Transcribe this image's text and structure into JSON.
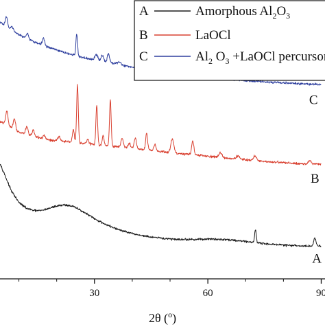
{
  "chart_data": {
    "type": "line",
    "x_range": [
      5,
      91
    ],
    "x_ticks": [
      "30",
      "60",
      "90"
    ],
    "x_tick_values": [
      30,
      60,
      90
    ],
    "xlabel": {
      "main": "2θ (",
      "sup": "o",
      "end": ")"
    },
    "legend": [
      {
        "letter": "A",
        "text": "Amorphous Al",
        "sub1": "2",
        "mid": "O",
        "sub2": "3",
        "tail": ""
      },
      {
        "letter": "B",
        "text": "LaOCl",
        "sub1": "",
        "mid": "",
        "sub2": "",
        "tail": ""
      },
      {
        "letter": "C",
        "text": "Al",
        "sub1": "2",
        "mid": " O",
        "sub2": "3",
        "tail": " +LaOCl percursor"
      }
    ],
    "series": [
      {
        "label": "A",
        "color": "#1a1a1a",
        "noise": 0.045,
        "background": [
          [
            5,
            5.0
          ],
          [
            6,
            4.6
          ],
          [
            8,
            3.8
          ],
          [
            10,
            3.3
          ],
          [
            12,
            3.05
          ],
          [
            14,
            2.95
          ],
          [
            16,
            2.95
          ],
          [
            18,
            3.05
          ],
          [
            20,
            3.15
          ],
          [
            22,
            3.2
          ],
          [
            24,
            3.15
          ],
          [
            26,
            3.0
          ],
          [
            28,
            2.8
          ],
          [
            30,
            2.6
          ],
          [
            33,
            2.35
          ],
          [
            36,
            2.15
          ],
          [
            40,
            1.95
          ],
          [
            45,
            1.8
          ],
          [
            50,
            1.72
          ],
          [
            55,
            1.7
          ],
          [
            60,
            1.72
          ],
          [
            65,
            1.7
          ],
          [
            70,
            1.62
          ],
          [
            75,
            1.52
          ],
          [
            80,
            1.46
          ],
          [
            85,
            1.42
          ],
          [
            90,
            1.42
          ]
        ],
        "peaks": [
          [
            72.6,
            0.55,
            0.22
          ],
          [
            88.3,
            0.35,
            0.3
          ]
        ]
      },
      {
        "label": "B",
        "color": "#d94030",
        "noise": 0.05,
        "background": [
          [
            5,
            6.8
          ],
          [
            8,
            6.55
          ],
          [
            10,
            6.35
          ],
          [
            14,
            6.15
          ],
          [
            18,
            6.0
          ],
          [
            22,
            5.95
          ],
          [
            26,
            5.88
          ],
          [
            30,
            5.8
          ],
          [
            35,
            5.72
          ],
          [
            40,
            5.65
          ],
          [
            45,
            5.55
          ],
          [
            50,
            5.45
          ],
          [
            55,
            5.38
          ],
          [
            60,
            5.3
          ],
          [
            65,
            5.22
          ],
          [
            70,
            5.15
          ],
          [
            75,
            5.08
          ],
          [
            80,
            5.02
          ],
          [
            85,
            4.98
          ],
          [
            90,
            4.95
          ]
        ],
        "peaks": [
          [
            6.8,
            0.6,
            0.3
          ],
          [
            8.8,
            0.45,
            0.3
          ],
          [
            12.1,
            0.35,
            0.3
          ],
          [
            13.8,
            0.25,
            0.3
          ],
          [
            16.7,
            0.15,
            0.3
          ],
          [
            20.6,
            0.2,
            0.3
          ],
          [
            24.4,
            0.55,
            0.25
          ],
          [
            25.5,
            2.5,
            0.22
          ],
          [
            28.2,
            0.2,
            0.3
          ],
          [
            30.6,
            1.7,
            0.22
          ],
          [
            32.3,
            0.45,
            0.25
          ],
          [
            34.2,
            2.0,
            0.22
          ],
          [
            37.3,
            0.4,
            0.3
          ],
          [
            39.2,
            0.2,
            0.3
          ],
          [
            40.8,
            0.45,
            0.3
          ],
          [
            43.8,
            0.75,
            0.25
          ],
          [
            46.0,
            0.3,
            0.3
          ],
          [
            50.6,
            0.6,
            0.4
          ],
          [
            56.0,
            0.6,
            0.3
          ],
          [
            63.4,
            0.2,
            0.4
          ],
          [
            68.0,
            0.15,
            0.4
          ],
          [
            72.5,
            0.2,
            0.4
          ],
          [
            87.0,
            0.12,
            0.4
          ]
        ]
      },
      {
        "label": "C",
        "color": "#2e3f9e",
        "noise": 0.05,
        "background": [
          [
            5,
            11.1
          ],
          [
            7,
            10.85
          ],
          [
            10,
            10.55
          ],
          [
            14,
            10.25
          ],
          [
            18,
            10.0
          ],
          [
            22,
            9.78
          ],
          [
            26,
            9.6
          ],
          [
            30,
            9.45
          ],
          [
            35,
            9.3
          ],
          [
            40,
            9.15
          ],
          [
            45,
            9.02
          ],
          [
            50,
            8.9
          ],
          [
            55,
            8.8
          ],
          [
            60,
            8.72
          ],
          [
            65,
            8.64
          ],
          [
            70,
            8.58
          ],
          [
            75,
            8.52
          ],
          [
            80,
            8.47
          ],
          [
            85,
            8.43
          ],
          [
            90,
            8.4
          ]
        ],
        "peaks": [
          [
            6.7,
            0.45,
            0.3
          ],
          [
            8.2,
            0.18,
            0.3
          ],
          [
            12.3,
            0.2,
            0.3
          ],
          [
            16.5,
            0.3,
            0.3
          ],
          [
            25.3,
            0.95,
            0.22
          ],
          [
            30.5,
            0.25,
            0.4
          ],
          [
            32.1,
            0.28,
            0.35
          ],
          [
            33.7,
            0.42,
            0.3
          ],
          [
            36.5,
            0.12,
            0.5
          ],
          [
            44.0,
            0.12,
            0.5
          ],
          [
            56.0,
            0.12,
            0.5
          ]
        ]
      }
    ],
    "curve_labels": [
      {
        "text": "A",
        "x": 87.6,
        "y": 0.7
      },
      {
        "text": "B",
        "x": 87.2,
        "y": 4.15
      },
      {
        "text": "C",
        "x": 86.8,
        "y": 7.55
      }
    ]
  }
}
